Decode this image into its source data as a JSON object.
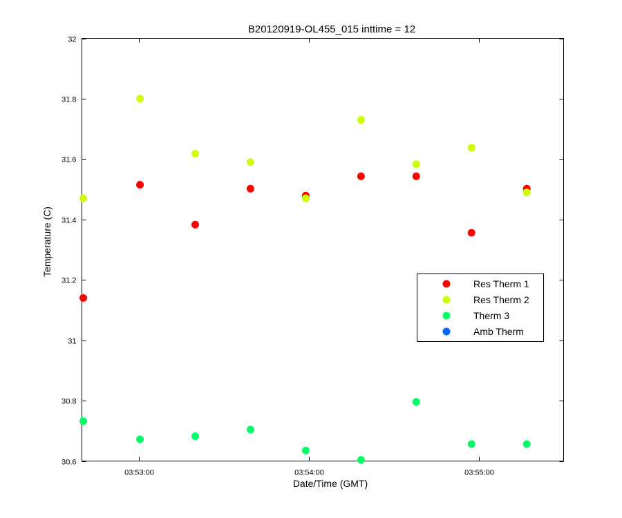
{
  "chart_data": {
    "type": "scatter",
    "title": "B20120919-OL455_015 inttime = 12",
    "xlabel": "Date/Time (GMT)",
    "ylabel": "Temperature (C)",
    "x_unit": "seconds",
    "xlim": [
      0,
      170
    ],
    "ylim": [
      30.6,
      32
    ],
    "x_ticks": [
      {
        "value": 20,
        "label": "03:53:00"
      },
      {
        "value": 80,
        "label": "03:54:00"
      },
      {
        "value": 140,
        "label": "03:55:00"
      }
    ],
    "y_ticks": [
      {
        "value": 30.6,
        "label": "30.6"
      },
      {
        "value": 30.8,
        "label": "30.8"
      },
      {
        "value": 31.0,
        "label": "31"
      },
      {
        "value": 31.2,
        "label": "31.2"
      },
      {
        "value": 31.4,
        "label": "31.4"
      },
      {
        "value": 31.6,
        "label": "31.6"
      },
      {
        "value": 31.8,
        "label": "31.8"
      },
      {
        "value": 32.0,
        "label": "32"
      }
    ],
    "grid": false,
    "legend_position": "right",
    "x": [
      0.5,
      20.5,
      40,
      59.5,
      79,
      98.5,
      118,
      137.5,
      157
    ],
    "series": [
      {
        "name": "Res Therm 1",
        "color": "#ff0000",
        "values": [
          31.14,
          31.515,
          31.383,
          31.502,
          31.479,
          31.543,
          31.543,
          31.356,
          31.502
        ]
      },
      {
        "name": "Res Therm 2",
        "color": "#ccff00",
        "values": [
          31.47,
          31.8,
          31.618,
          31.59,
          31.47,
          31.73,
          31.583,
          31.638,
          31.49
        ]
      },
      {
        "name": "Therm 3",
        "color": "#00ff66",
        "values": [
          30.732,
          30.672,
          30.682,
          30.704,
          30.635,
          30.604,
          30.796,
          30.656,
          30.656
        ]
      },
      {
        "name": "Amb Therm",
        "color": "#0066ff",
        "values": []
      }
    ]
  }
}
